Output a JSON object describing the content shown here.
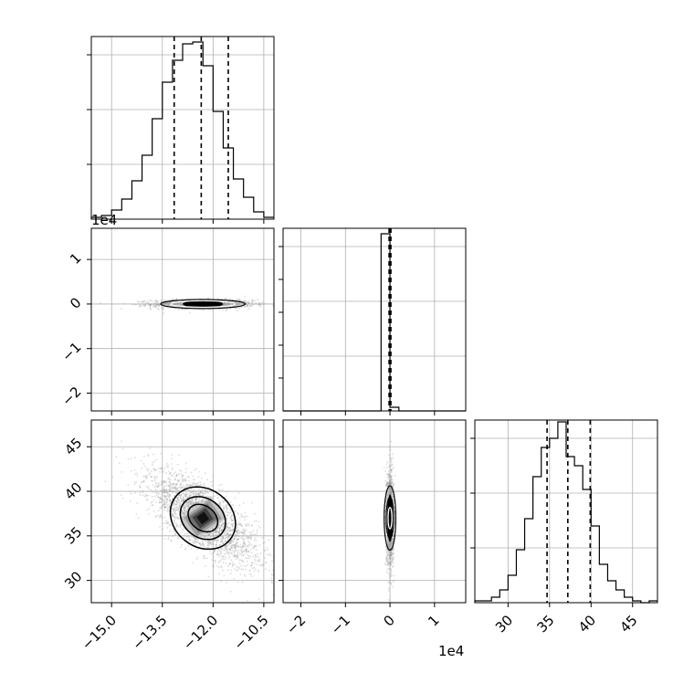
{
  "chart_data": {
    "type": "corner",
    "colors": {
      "line": "#000000",
      "grid": "#b0b0b0",
      "points": "#9a9a9a"
    },
    "grid": true,
    "panels": [
      {
        "id": "hist-p1",
        "type": "histogram",
        "bin_edges": [
          -15.6,
          -15.3,
          -15.0,
          -14.7,
          -14.4,
          -14.1,
          -13.8,
          -13.5,
          -13.2,
          -12.9,
          -12.6,
          -12.3,
          -12.0,
          -11.7,
          -11.4,
          -11.1,
          -10.8,
          -10.5,
          -10.2
        ],
        "values": [
          0.01,
          0.02,
          0.05,
          0.11,
          0.21,
          0.35,
          0.55,
          0.75,
          0.87,
          0.96,
          0.97,
          0.84,
          0.59,
          0.39,
          0.22,
          0.12,
          0.04,
          0.01
        ],
        "quantile_lines": [
          -13.15,
          -12.35,
          -11.55
        ],
        "xlim": [
          -15.6,
          -10.2
        ],
        "ylim": [
          0,
          1.0
        ]
      },
      {
        "id": "scatter-p1-p2",
        "type": "scatter_2d",
        "exponent_label_y": "1e4",
        "xlim": [
          -15.6,
          -10.2
        ],
        "ylim": [
          -2.4,
          1.7
        ],
        "x_ticks": [
          -15.0,
          -13.5,
          -12.0,
          -10.5
        ],
        "y_ticks": [
          -2,
          -1,
          0,
          1
        ],
        "y_tick_labels": [
          "−2",
          "−1",
          "0",
          "1"
        ],
        "center": [
          -12.3,
          0.0
        ],
        "x_spread": 0.75,
        "y_spread": 0.05,
        "correlation": 0.0,
        "contour_half_widths": [
          [
            0.55,
            0.035
          ],
          [
            0.95,
            0.06
          ],
          [
            1.25,
            0.09
          ]
        ]
      },
      {
        "id": "hist-p2",
        "type": "histogram",
        "bin_edges": [
          -2.4,
          -0.2,
          0.0,
          0.2,
          1.7
        ],
        "values": [
          0,
          0.97,
          0.02,
          0
        ],
        "quantile_lines": [
          -0.02,
          0.0,
          0.02
        ],
        "xlim": [
          -2.4,
          1.7
        ],
        "ylim": [
          0,
          1.0
        ]
      },
      {
        "id": "scatter-p1-p3",
        "type": "scatter_2d",
        "xlim": [
          -15.6,
          -10.2
        ],
        "ylim": [
          27.5,
          48
        ],
        "x_ticks": [
          -15.0,
          -13.5,
          -12.0,
          -10.5
        ],
        "x_tick_labels": [
          "−15.0",
          "−13.5",
          "−12.0",
          "−10.5"
        ],
        "y_ticks": [
          30,
          35,
          40,
          45
        ],
        "y_tick_labels": [
          "30",
          "35",
          "40",
          "45"
        ],
        "center": [
          -12.3,
          37.0
        ],
        "x_spread": 0.8,
        "y_spread": 2.6,
        "correlation": -0.72,
        "contour_axes": [
          [
            0.45,
            1.1
          ],
          [
            0.85,
            2.1
          ],
          [
            1.35,
            3.4
          ]
        ],
        "contour_angle_deg": -52
      },
      {
        "id": "scatter-p2-p3",
        "type": "scatter_2d",
        "exponent_label_x": "1e4",
        "xlim": [
          -2.4,
          1.7
        ],
        "ylim": [
          27.5,
          48
        ],
        "x_ticks": [
          -2,
          -1,
          0,
          1
        ],
        "x_tick_labels": [
          "−2",
          "−1",
          "0",
          "1"
        ],
        "center": [
          0.0,
          37.0
        ],
        "x_spread": 0.04,
        "y_spread": 2.6,
        "correlation": 0.0,
        "contour_axes": [
          [
            0.03,
            1.2
          ],
          [
            0.06,
            2.3
          ],
          [
            0.1,
            3.6
          ]
        ]
      },
      {
        "id": "hist-p3",
        "type": "histogram",
        "bin_edges": [
          26,
          27,
          28,
          29,
          30,
          31,
          32,
          33,
          34,
          35,
          36,
          37,
          38,
          39,
          40,
          41,
          42,
          43,
          44,
          45,
          46,
          47,
          48
        ],
        "values": [
          0.01,
          0.01,
          0.03,
          0.07,
          0.15,
          0.29,
          0.46,
          0.69,
          0.85,
          0.9,
          0.99,
          0.8,
          0.75,
          0.62,
          0.42,
          0.21,
          0.12,
          0.07,
          0.03,
          0.01,
          0.0,
          0.01
        ],
        "quantile_lines": [
          34.7,
          37.2,
          39.9
        ],
        "xlim": [
          26,
          48
        ],
        "ylim": [
          0,
          1.0
        ],
        "x_ticks": [
          30,
          35,
          40,
          45
        ],
        "x_tick_labels": [
          "30",
          "35",
          "40",
          "45"
        ]
      }
    ]
  }
}
